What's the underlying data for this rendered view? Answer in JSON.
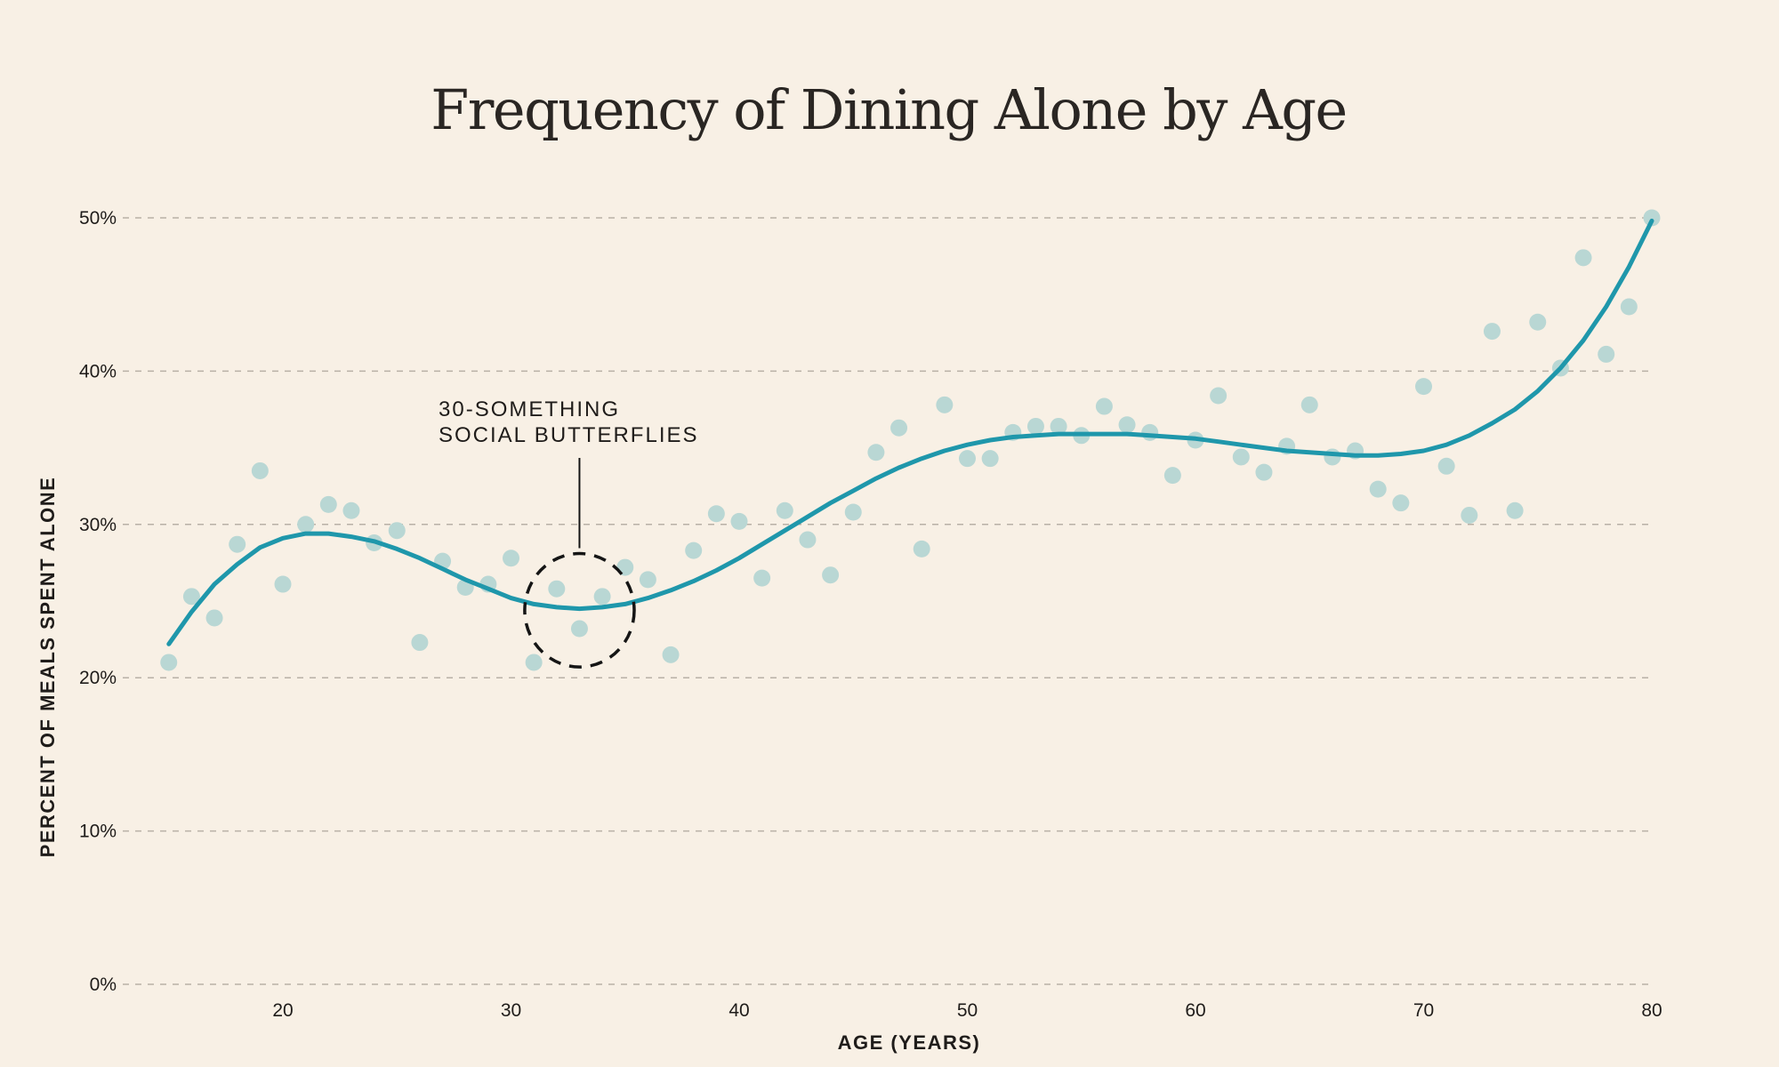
{
  "chart_data": {
    "type": "scatter",
    "title": "Frequency of Dining Alone by Age",
    "xlabel": "AGE (YEARS)",
    "ylabel": "PERCENT OF MEALS SPENT ALONE",
    "xlim": [
      14,
      80
    ],
    "ylim": [
      0,
      50
    ],
    "x_ticks": [
      {
        "value": 20,
        "label": "20"
      },
      {
        "value": 30,
        "label": "30"
      },
      {
        "value": 40,
        "label": "40"
      },
      {
        "value": 50,
        "label": "50"
      },
      {
        "value": 60,
        "label": "60"
      },
      {
        "value": 70,
        "label": "70"
      },
      {
        "value": 80,
        "label": "80"
      }
    ],
    "y_ticks": [
      {
        "value": 0,
        "label": "0%"
      },
      {
        "value": 10,
        "label": "10%"
      },
      {
        "value": 20,
        "label": "20%"
      },
      {
        "value": 30,
        "label": "30%"
      },
      {
        "value": 40,
        "label": "40%"
      },
      {
        "value": 50,
        "label": "50%"
      }
    ],
    "grid": "horizontal dashed",
    "colors": {
      "background": "#f8f0e5",
      "points": "#b9d7d4",
      "trend": "#1f97ab",
      "annotation": "#151515",
      "grid": "#b9b1a6"
    },
    "points": [
      {
        "x": 15,
        "y": 21.0
      },
      {
        "x": 16,
        "y": 25.3
      },
      {
        "x": 17,
        "y": 23.9
      },
      {
        "x": 18,
        "y": 28.7
      },
      {
        "x": 19,
        "y": 33.5
      },
      {
        "x": 20,
        "y": 26.1
      },
      {
        "x": 21,
        "y": 30.0
      },
      {
        "x": 22,
        "y": 31.3
      },
      {
        "x": 23,
        "y": 30.9
      },
      {
        "x": 24,
        "y": 28.8
      },
      {
        "x": 25,
        "y": 29.6
      },
      {
        "x": 26,
        "y": 22.3
      },
      {
        "x": 27,
        "y": 27.6
      },
      {
        "x": 28,
        "y": 25.9
      },
      {
        "x": 29,
        "y": 26.1
      },
      {
        "x": 30,
        "y": 27.8
      },
      {
        "x": 31,
        "y": 21.0
      },
      {
        "x": 32,
        "y": 25.8
      },
      {
        "x": 33,
        "y": 23.2
      },
      {
        "x": 34,
        "y": 25.3
      },
      {
        "x": 35,
        "y": 27.2
      },
      {
        "x": 36,
        "y": 26.4
      },
      {
        "x": 37,
        "y": 21.5
      },
      {
        "x": 38,
        "y": 28.3
      },
      {
        "x": 39,
        "y": 30.7
      },
      {
        "x": 40,
        "y": 30.2
      },
      {
        "x": 41,
        "y": 26.5
      },
      {
        "x": 42,
        "y": 30.9
      },
      {
        "x": 43,
        "y": 29.0
      },
      {
        "x": 44,
        "y": 26.7
      },
      {
        "x": 45,
        "y": 30.8
      },
      {
        "x": 46,
        "y": 34.7
      },
      {
        "x": 47,
        "y": 36.3
      },
      {
        "x": 48,
        "y": 28.4
      },
      {
        "x": 49,
        "y": 37.8
      },
      {
        "x": 50,
        "y": 34.3
      },
      {
        "x": 51,
        "y": 34.3
      },
      {
        "x": 52,
        "y": 36.0
      },
      {
        "x": 53,
        "y": 36.4
      },
      {
        "x": 54,
        "y": 36.4
      },
      {
        "x": 55,
        "y": 35.8
      },
      {
        "x": 56,
        "y": 37.7
      },
      {
        "x": 57,
        "y": 36.5
      },
      {
        "x": 58,
        "y": 36.0
      },
      {
        "x": 59,
        "y": 33.2
      },
      {
        "x": 60,
        "y": 35.5
      },
      {
        "x": 61,
        "y": 38.4
      },
      {
        "x": 62,
        "y": 34.4
      },
      {
        "x": 63,
        "y": 33.4
      },
      {
        "x": 64,
        "y": 35.1
      },
      {
        "x": 65,
        "y": 37.8
      },
      {
        "x": 66,
        "y": 34.4
      },
      {
        "x": 67,
        "y": 34.8
      },
      {
        "x": 68,
        "y": 32.3
      },
      {
        "x": 69,
        "y": 31.4
      },
      {
        "x": 70,
        "y": 39.0
      },
      {
        "x": 71,
        "y": 33.8
      },
      {
        "x": 72,
        "y": 30.6
      },
      {
        "x": 73,
        "y": 42.6
      },
      {
        "x": 74,
        "y": 30.9
      },
      {
        "x": 75,
        "y": 43.2
      },
      {
        "x": 76,
        "y": 40.2
      },
      {
        "x": 77,
        "y": 47.4
      },
      {
        "x": 78,
        "y": 41.1
      },
      {
        "x": 79,
        "y": 44.2
      },
      {
        "x": 80,
        "y": 50.0
      }
    ],
    "trend_line": [
      {
        "x": 15,
        "y": 22.2
      },
      {
        "x": 16,
        "y": 24.3
      },
      {
        "x": 17,
        "y": 26.1
      },
      {
        "x": 18,
        "y": 27.4
      },
      {
        "x": 19,
        "y": 28.5
      },
      {
        "x": 20,
        "y": 29.1
      },
      {
        "x": 21,
        "y": 29.4
      },
      {
        "x": 22,
        "y": 29.4
      },
      {
        "x": 23,
        "y": 29.2
      },
      {
        "x": 24,
        "y": 28.9
      },
      {
        "x": 25,
        "y": 28.4
      },
      {
        "x": 26,
        "y": 27.8
      },
      {
        "x": 27,
        "y": 27.1
      },
      {
        "x": 28,
        "y": 26.4
      },
      {
        "x": 29,
        "y": 25.8
      },
      {
        "x": 30,
        "y": 25.2
      },
      {
        "x": 31,
        "y": 24.8
      },
      {
        "x": 32,
        "y": 24.6
      },
      {
        "x": 33,
        "y": 24.5
      },
      {
        "x": 34,
        "y": 24.6
      },
      {
        "x": 35,
        "y": 24.8
      },
      {
        "x": 36,
        "y": 25.2
      },
      {
        "x": 37,
        "y": 25.7
      },
      {
        "x": 38,
        "y": 26.3
      },
      {
        "x": 39,
        "y": 27.0
      },
      {
        "x": 40,
        "y": 27.8
      },
      {
        "x": 41,
        "y": 28.7
      },
      {
        "x": 42,
        "y": 29.6
      },
      {
        "x": 43,
        "y": 30.5
      },
      {
        "x": 44,
        "y": 31.4
      },
      {
        "x": 45,
        "y": 32.2
      },
      {
        "x": 46,
        "y": 33.0
      },
      {
        "x": 47,
        "y": 33.7
      },
      {
        "x": 48,
        "y": 34.3
      },
      {
        "x": 49,
        "y": 34.8
      },
      {
        "x": 50,
        "y": 35.2
      },
      {
        "x": 51,
        "y": 35.5
      },
      {
        "x": 52,
        "y": 35.7
      },
      {
        "x": 53,
        "y": 35.8
      },
      {
        "x": 54,
        "y": 35.9
      },
      {
        "x": 55,
        "y": 35.9
      },
      {
        "x": 56,
        "y": 35.9
      },
      {
        "x": 57,
        "y": 35.9
      },
      {
        "x": 58,
        "y": 35.8
      },
      {
        "x": 59,
        "y": 35.7
      },
      {
        "x": 60,
        "y": 35.6
      },
      {
        "x": 61,
        "y": 35.4
      },
      {
        "x": 62,
        "y": 35.2
      },
      {
        "x": 63,
        "y": 35.0
      },
      {
        "x": 64,
        "y": 34.8
      },
      {
        "x": 65,
        "y": 34.7
      },
      {
        "x": 66,
        "y": 34.6
      },
      {
        "x": 67,
        "y": 34.5
      },
      {
        "x": 68,
        "y": 34.5
      },
      {
        "x": 69,
        "y": 34.6
      },
      {
        "x": 70,
        "y": 34.8
      },
      {
        "x": 71,
        "y": 35.2
      },
      {
        "x": 72,
        "y": 35.8
      },
      {
        "x": 73,
        "y": 36.6
      },
      {
        "x": 74,
        "y": 37.5
      },
      {
        "x": 75,
        "y": 38.7
      },
      {
        "x": 76,
        "y": 40.2
      },
      {
        "x": 77,
        "y": 42.0
      },
      {
        "x": 78,
        "y": 44.2
      },
      {
        "x": 79,
        "y": 46.8
      },
      {
        "x": 80,
        "y": 49.8
      }
    ],
    "annotation": {
      "lines": [
        "30-SOMETHING",
        "SOCIAL BUTTERFLIES"
      ],
      "center": {
        "x": 33,
        "y": 24.4
      },
      "radius_x": 2.4,
      "radius_y": 3.7
    }
  }
}
